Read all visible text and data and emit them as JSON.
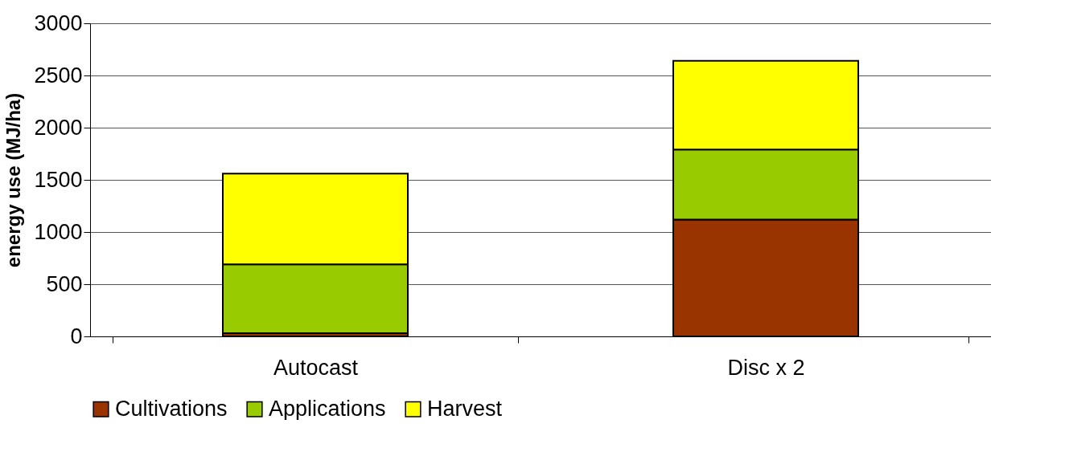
{
  "chart_data": {
    "type": "bar",
    "stacked": true,
    "ylabel": "energy use (MJ/ha)",
    "categories": [
      "Autocast",
      "Disc x 2"
    ],
    "series": [
      {
        "name": "Cultivations",
        "color": "#993300",
        "values": [
          30,
          1120
        ]
      },
      {
        "name": "Applications",
        "color": "#99cc00",
        "values": [
          660,
          670
        ]
      },
      {
        "name": "Harvest",
        "color": "#ffff00",
        "values": [
          870,
          850
        ]
      }
    ],
    "ylim": [
      0,
      3000
    ],
    "yticks": [
      0,
      500,
      1000,
      1500,
      2000,
      2500,
      3000
    ],
    "grid": "y",
    "legend": "bottom"
  }
}
